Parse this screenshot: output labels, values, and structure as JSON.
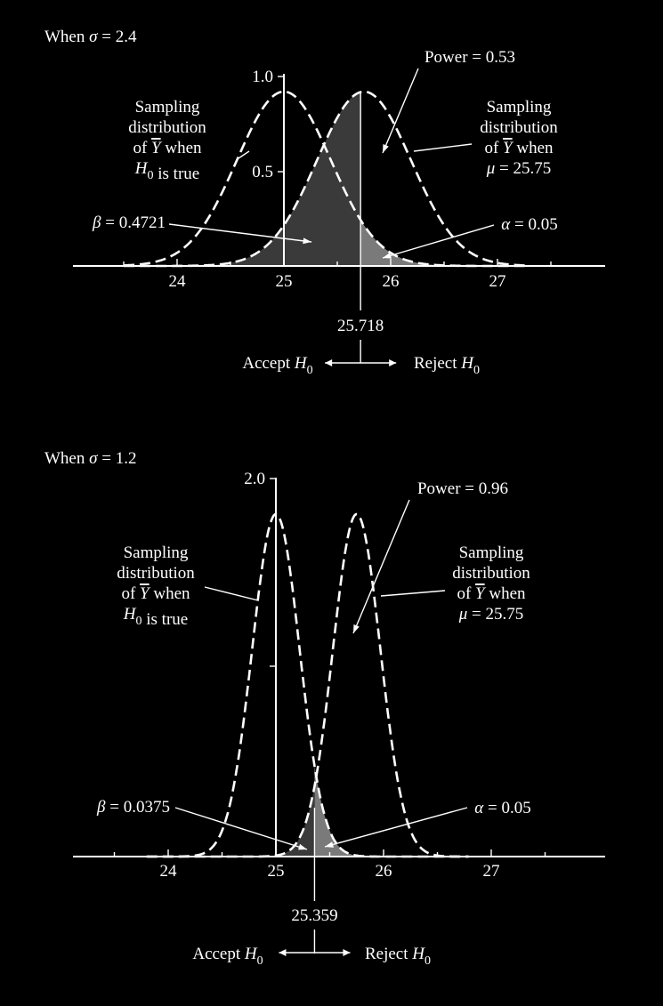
{
  "chart_data": [
    {
      "type": "area",
      "panel_label": "When σ = 2.4",
      "x_ticks": [
        "24",
        "25",
        "26",
        "27"
      ],
      "y_ticks": [
        "1.0",
        "0.5"
      ],
      "ylim": [
        0,
        1.0
      ],
      "null_mean": 25,
      "alt_mean": 25.75,
      "std_error": 0.44,
      "critical_value": 25.718,
      "critical_label": "25.718",
      "series": [
        {
          "name": "H0 curve",
          "mean": 25,
          "sd": 0.44
        },
        {
          "name": "Alt curve",
          "mean": 25.75,
          "sd": 0.44
        }
      ],
      "annotations": {
        "power": "Power = 0.53",
        "beta": "β = 0.4721",
        "alpha": "α = 0.05",
        "null_label_lines": [
          "Sampling",
          "distribution",
          "of Y when",
          "H0 is true"
        ],
        "alt_label_lines": [
          "Sampling",
          "distribution",
          "of Y when",
          "μ = 25.75"
        ],
        "accept": "Accept H0",
        "reject": "Reject H0"
      }
    },
    {
      "type": "area",
      "panel_label": "When σ = 1.2",
      "x_ticks": [
        "24",
        "25",
        "26",
        "27"
      ],
      "y_ticks": [
        "2.0"
      ],
      "ylim": [
        0,
        2.0
      ],
      "null_mean": 25,
      "alt_mean": 25.75,
      "std_error": 0.22,
      "critical_value": 25.359,
      "critical_label": "25.359",
      "series": [
        {
          "name": "H0 curve",
          "mean": 25,
          "sd": 0.22
        },
        {
          "name": "Alt curve",
          "mean": 25.75,
          "sd": 0.22
        }
      ],
      "annotations": {
        "power": "Power = 0.96",
        "beta": "β = 0.0375",
        "alpha": "α = 0.05",
        "null_label_lines": [
          "Sampling",
          "distribution",
          "of Y when",
          "H0 is true"
        ],
        "alt_label_lines": [
          "Sampling",
          "distribution",
          "of Y when",
          "μ = 25.75"
        ],
        "accept": "Accept H0",
        "reject": "Reject H0"
      }
    }
  ]
}
